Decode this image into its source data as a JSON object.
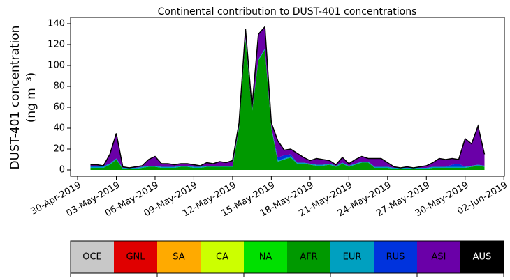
{
  "chart_data": {
    "type": "stacked-area",
    "title": "Continental contribution to DUST-401 concentrations",
    "ylabel": [
      "DUST-401 concentration",
      "(ng m⁻³)"
    ],
    "x": [
      "2019-05-01T00:00",
      "2019-05-01T12:00",
      "2019-05-02T00:00",
      "2019-05-02T12:00",
      "2019-05-03T00:00",
      "2019-05-03T12:00",
      "2019-05-04T00:00",
      "2019-05-04T12:00",
      "2019-05-05T00:00",
      "2019-05-05T12:00",
      "2019-05-06T00:00",
      "2019-05-06T12:00",
      "2019-05-07T00:00",
      "2019-05-07T12:00",
      "2019-05-08T00:00",
      "2019-05-08T12:00",
      "2019-05-09T00:00",
      "2019-05-09T12:00",
      "2019-05-10T00:00",
      "2019-05-10T12:00",
      "2019-05-11T00:00",
      "2019-05-11T12:00",
      "2019-05-12T00:00",
      "2019-05-12T12:00",
      "2019-05-13T00:00",
      "2019-05-13T12:00",
      "2019-05-14T00:00",
      "2019-05-14T12:00",
      "2019-05-15T00:00",
      "2019-05-15T12:00",
      "2019-05-16T00:00",
      "2019-05-16T12:00",
      "2019-05-17T00:00",
      "2019-05-17T12:00",
      "2019-05-18T00:00",
      "2019-05-18T12:00",
      "2019-05-19T00:00",
      "2019-05-19T12:00",
      "2019-05-20T00:00",
      "2019-05-20T12:00",
      "2019-05-21T00:00",
      "2019-05-21T12:00",
      "2019-05-22T00:00",
      "2019-05-22T12:00",
      "2019-05-23T00:00",
      "2019-05-23T12:00",
      "2019-05-24T00:00",
      "2019-05-24T12:00",
      "2019-05-25T00:00",
      "2019-05-25T12:00",
      "2019-05-26T00:00",
      "2019-05-26T12:00",
      "2019-05-27T00:00",
      "2019-05-27T12:00",
      "2019-05-28T00:00",
      "2019-05-28T12:00",
      "2019-05-29T00:00",
      "2019-05-29T12:00",
      "2019-05-30T00:00",
      "2019-05-30T12:00",
      "2019-05-31T00:00",
      "2019-05-31T12:00"
    ],
    "series": [
      {
        "name": "AFR",
        "color": "#009900",
        "values": [
          2,
          2,
          2,
          5,
          10,
          1,
          1,
          1,
          2,
          3,
          3,
          2,
          2,
          2,
          3,
          3,
          2,
          2,
          3,
          3,
          3,
          3,
          3,
          40,
          125,
          55,
          105,
          115,
          40,
          8,
          10,
          12,
          6,
          6,
          5,
          4,
          4,
          5,
          3,
          6,
          3,
          5,
          7,
          7,
          2,
          2,
          2,
          1,
          1,
          1,
          1,
          1,
          1,
          2,
          2,
          2,
          2,
          2,
          2,
          3,
          4,
          3
        ]
      },
      {
        "name": "EUR",
        "color": "#00a0c0",
        "values": [
          1,
          1,
          1,
          1,
          1,
          1,
          1,
          1,
          1,
          1,
          1,
          1,
          1,
          1,
          1,
          1,
          1,
          1,
          1,
          1,
          1,
          1,
          1,
          1,
          1,
          1,
          1,
          1,
          1,
          1,
          1,
          1,
          1,
          1,
          1,
          1,
          1,
          1,
          1,
          1,
          1,
          1,
          1,
          1,
          1,
          1,
          1,
          1,
          1,
          1,
          1,
          1,
          1,
          1,
          1,
          1,
          1,
          1,
          1,
          1,
          1,
          1
        ]
      },
      {
        "name": "RUS",
        "color": "#0033dd",
        "values": [
          1,
          1,
          1,
          0,
          0,
          0,
          0,
          0,
          0,
          0,
          0,
          0,
          0,
          0,
          0,
          0,
          0,
          0,
          0,
          0,
          0,
          0,
          0,
          0,
          0,
          0,
          0,
          0,
          0,
          3,
          3,
          2,
          0,
          0,
          0,
          0,
          0,
          0,
          0,
          0,
          0,
          0,
          0,
          0,
          0,
          0,
          0,
          0,
          0,
          0,
          0,
          0,
          0,
          0,
          0,
          0,
          2,
          3,
          0,
          0,
          0,
          0
        ]
      },
      {
        "name": "ASI",
        "color": "#6a00a8",
        "values": [
          1,
          1,
          0,
          9,
          24,
          1,
          0,
          1,
          1,
          6,
          9,
          3,
          3,
          2,
          2,
          2,
          2,
          1,
          3,
          2,
          4,
          3,
          5,
          4,
          9,
          4,
          24,
          21,
          4,
          16,
          5,
          5,
          9,
          5,
          3,
          6,
          5,
          3,
          1,
          5,
          2,
          4,
          5,
          3,
          8,
          8,
          4,
          1,
          0,
          1,
          0,
          1,
          2,
          4,
          8,
          7,
          6,
          4,
          27,
          21,
          37,
          11
        ]
      }
    ],
    "xlim": [
      "2019-04-29T11:00",
      "2019-06-02T01:00"
    ],
    "xticks": [
      {
        "value": "2019-04-30T00:00",
        "label": "30-Apr-2019"
      },
      {
        "value": "2019-05-03T00:00",
        "label": "03-May-2019"
      },
      {
        "value": "2019-05-06T00:00",
        "label": "06-May-2019"
      },
      {
        "value": "2019-05-09T00:00",
        "label": "09-May-2019"
      },
      {
        "value": "2019-05-12T00:00",
        "label": "12-May-2019"
      },
      {
        "value": "2019-05-15T00:00",
        "label": "15-May-2019"
      },
      {
        "value": "2019-05-18T00:00",
        "label": "18-May-2019"
      },
      {
        "value": "2019-05-21T00:00",
        "label": "21-May-2019"
      },
      {
        "value": "2019-05-24T00:00",
        "label": "24-May-2019"
      },
      {
        "value": "2019-05-27T00:00",
        "label": "27-May-2019"
      },
      {
        "value": "2019-05-30T00:00",
        "label": "30-May-2019"
      },
      {
        "value": "2019-06-02T00:00",
        "label": "02-Jun-2019"
      }
    ],
    "ylim": [
      -6,
      146
    ],
    "yticks": [
      0,
      20,
      40,
      60,
      80,
      100,
      120,
      140
    ],
    "colorbar": {
      "labels": [
        "OCE",
        "GNL",
        "SA",
        "CA",
        "NA",
        "AFR",
        "EUR",
        "RUS",
        "ASI",
        "AUS"
      ],
      "colors": [
        "#c8c8c8",
        "#e00000",
        "#ffaa00",
        "#ccff00",
        "#00e000",
        "#009900",
        "#00a0c0",
        "#0033dd",
        "#6a00a8",
        "#000000"
      ]
    }
  }
}
